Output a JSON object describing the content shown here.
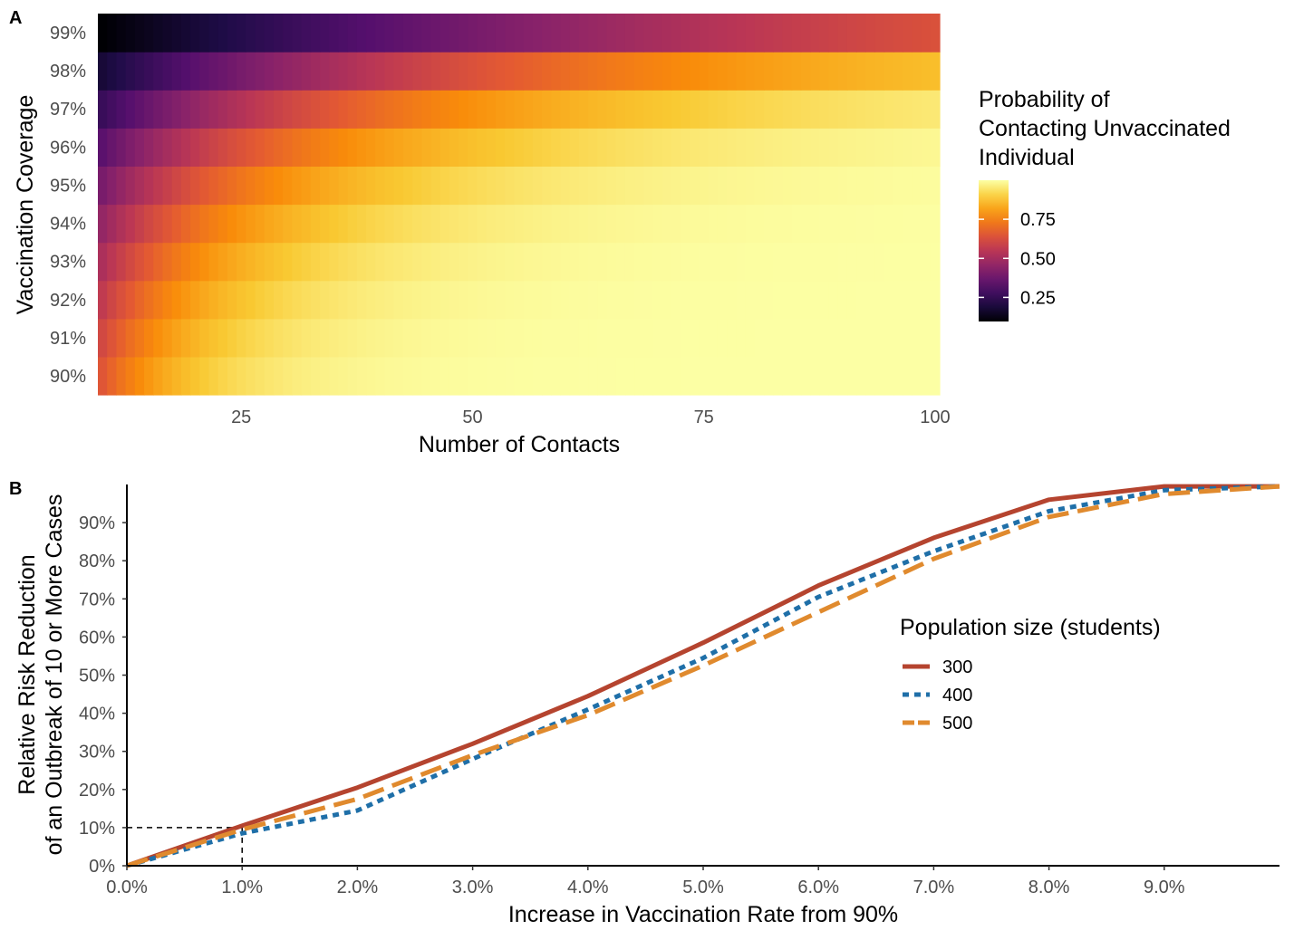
{
  "chart_data": [
    {
      "panel": "A",
      "type": "heatmap",
      "xlabel": "Number of Contacts",
      "ylabel": "Vaccination Coverage",
      "x_range": [
        10,
        100
      ],
      "x_ticks": [
        25,
        50,
        75,
        100
      ],
      "y_categories": [
        "90%",
        "91%",
        "92%",
        "93%",
        "94%",
        "95%",
        "96%",
        "97%",
        "98%",
        "99%"
      ],
      "coverage": [
        0.9,
        0.91,
        0.92,
        0.93,
        0.94,
        0.95,
        0.96,
        0.97,
        0.98,
        0.99
      ],
      "value_formula": "1 - coverage ^ contacts",
      "colorscale": "inferno",
      "legend": {
        "title_lines": [
          "Probability of",
          "Contacting Unvaccinated",
          "Individual"
        ],
        "ticks": [
          "0.25",
          "0.50",
          "0.75"
        ],
        "tick_values": [
          0.25,
          0.5,
          0.75
        ],
        "range": [
          0.096,
          1.0
        ]
      }
    },
    {
      "panel": "B",
      "type": "line",
      "xlabel": "Increase in Vaccination Rate from 90%",
      "ylabel_lines": [
        "Relative Risk Reduction",
        "of an Outbreak of 10 or More Cases"
      ],
      "x_ticks": [
        "0.0%",
        "1.0%",
        "2.0%",
        "3.0%",
        "4.0%",
        "5.0%",
        "6.0%",
        "7.0%",
        "8.0%",
        "9.0%"
      ],
      "x_tick_values": [
        0,
        1,
        2,
        3,
        4,
        5,
        6,
        7,
        8,
        9
      ],
      "y_ticks": [
        "0%",
        "10%",
        "20%",
        "30%",
        "40%",
        "50%",
        "60%",
        "70%",
        "80%",
        "90%"
      ],
      "y_tick_values": [
        0,
        10,
        20,
        30,
        40,
        50,
        60,
        70,
        80,
        90
      ],
      "xlim": [
        0,
        10
      ],
      "ylim": [
        0,
        100
      ],
      "reference": {
        "x": 1.0,
        "y": 10
      },
      "legend": {
        "title": "Population size (students)"
      },
      "series": [
        {
          "name": "300",
          "color": "#b5442f",
          "dash": "solid",
          "x": [
            0,
            1,
            2,
            3,
            4,
            5,
            6,
            7,
            8,
            9,
            10
          ],
          "y": [
            0,
            10.5,
            20.5,
            32,
            44.5,
            58.5,
            73.5,
            86,
            96,
            99.5,
            99.5
          ]
        },
        {
          "name": "400",
          "color": "#1f6fa8",
          "dash": "dotted",
          "x": [
            0,
            1,
            2,
            3,
            4,
            5,
            6,
            7,
            8,
            9,
            10
          ],
          "y": [
            0,
            8.5,
            14.5,
            28,
            41,
            54.5,
            70.5,
            82.5,
            93,
            98.5,
            99.5
          ]
        },
        {
          "name": "500",
          "color": "#e08a2e",
          "dash": "dashed",
          "x": [
            0,
            1,
            2,
            3,
            4,
            5,
            6,
            7,
            8,
            9,
            10
          ],
          "y": [
            0,
            9.5,
            17.5,
            29,
            39.5,
            52.5,
            66.5,
            80.5,
            91.5,
            97.5,
            99.5
          ]
        }
      ]
    }
  ]
}
